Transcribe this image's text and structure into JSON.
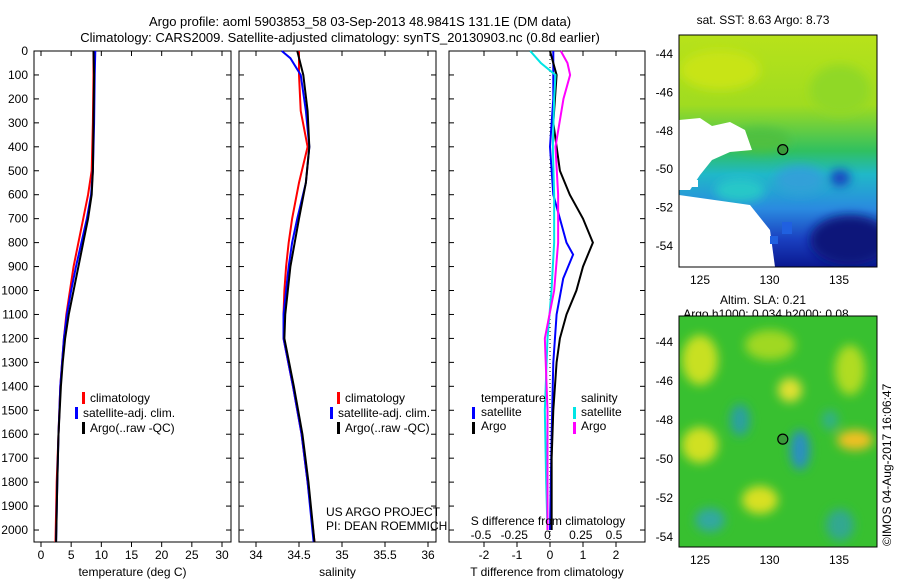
{
  "header": {
    "title_line1": "Argo profile: aoml 5903853_58 03-Sep-2013 48.9841S 131.1E (DM data)",
    "title_line2": "Climatology: CARS2009. Satellite-adjusted climatology: synTS_20130903.nc (0.8d earlier)"
  },
  "credit": {
    "project": "US ARGO PROJECT",
    "pi": "PI: DEAN ROEMMICH",
    "timestamp": "©IMOS 04-Aug-2017 16:06:47"
  },
  "colors": {
    "climatology": "#ff0000",
    "satellite": "#0000ff",
    "argo": "#000000",
    "sal_satellite": "#00e5e5",
    "sal_argo": "#ff00ff"
  },
  "chart_data": [
    {
      "type": "line",
      "xlabel": "temperature (deg C)",
      "xlim": [
        -1,
        31.5
      ],
      "ylim": [
        2050,
        0
      ],
      "xticks": [
        "0",
        "5",
        "10",
        "15",
        "20",
        "25",
        "30"
      ],
      "yticks": [
        "0",
        "100",
        "200",
        "300",
        "400",
        "500",
        "600",
        "700",
        "800",
        "900",
        "1000",
        "1100",
        "1200",
        "1300",
        "1400",
        "1500",
        "1600",
        "1700",
        "1800",
        "1900",
        "2000"
      ],
      "legend": [
        "climatology",
        "satellite-adj. clim.",
        "Argo(..raw -QC)"
      ],
      "series": [
        {
          "name": "climatology",
          "depth": [
            0,
            100,
            300,
            500,
            600,
            700,
            800,
            900,
            1000,
            1100,
            1200,
            1300,
            1400,
            1600,
            1800,
            2050
          ],
          "values": [
            8.7,
            8.7,
            8.6,
            8.4,
            7.8,
            7.0,
            6.2,
            5.4,
            4.8,
            4.2,
            3.8,
            3.5,
            3.2,
            2.9,
            2.6,
            2.4
          ]
        },
        {
          "name": "satellite-adj. clim.",
          "depth": [
            0,
            100,
            300,
            500,
            600,
            700,
            800,
            900,
            1000,
            1100,
            1200,
            1300,
            1400,
            1600,
            1800,
            2050
          ],
          "values": [
            9.0,
            8.9,
            8.8,
            8.6,
            8.3,
            7.6,
            6.7,
            5.8,
            5.0,
            4.3,
            3.8,
            3.5,
            3.2,
            2.9,
            2.7,
            2.5
          ]
        },
        {
          "name": "Argo(..raw -QC)",
          "depth": [
            0,
            100,
            300,
            500,
            600,
            700,
            800,
            900,
            1000,
            1100,
            1200,
            1300,
            1400,
            1600,
            1800,
            2050
          ],
          "values": [
            8.7,
            8.8,
            8.7,
            8.6,
            8.4,
            7.8,
            7.0,
            6.2,
            5.4,
            4.6,
            4.0,
            3.6,
            3.3,
            2.9,
            2.7,
            2.5
          ]
        }
      ]
    },
    {
      "type": "line",
      "xlabel": "salinity",
      "xlim": [
        33.8,
        36.1
      ],
      "ylim": [
        2050,
        0
      ],
      "xticks": [
        "34",
        "34.5",
        "35",
        "35.5",
        "36"
      ],
      "legend": [
        "climatology",
        "satellite-adj. clim.",
        "Argo(..raw -QC)"
      ],
      "series": [
        {
          "name": "climatology",
          "depth": [
            0,
            100,
            250,
            400,
            550,
            700,
            800,
            900,
            1000,
            1100,
            1200,
            1400,
            1600,
            1800,
            2050
          ],
          "values": [
            34.5,
            34.5,
            34.52,
            34.6,
            34.5,
            34.42,
            34.38,
            34.35,
            34.33,
            34.32,
            34.32,
            34.43,
            34.53,
            34.6,
            34.68
          ]
        },
        {
          "name": "satellite-adj. clim.",
          "depth": [
            0,
            30,
            100,
            250,
            400,
            550,
            700,
            800,
            900,
            1000,
            1100,
            1200,
            1400,
            1600,
            1800,
            2050
          ],
          "values": [
            34.3,
            34.4,
            34.52,
            34.58,
            34.62,
            34.58,
            34.48,
            34.42,
            34.38,
            34.35,
            34.32,
            34.32,
            34.43,
            34.53,
            34.6,
            34.67
          ]
        },
        {
          "name": "Argo(..raw -QC)",
          "depth": [
            0,
            100,
            250,
            400,
            550,
            700,
            800,
            900,
            1000,
            1100,
            1200,
            1400,
            1600,
            1800,
            2050
          ],
          "values": [
            34.48,
            34.55,
            34.6,
            34.62,
            34.58,
            34.5,
            34.45,
            34.4,
            34.37,
            34.34,
            34.33,
            34.44,
            34.54,
            34.61,
            34.68
          ]
        }
      ]
    },
    {
      "type": "line",
      "xlabel": "T difference from climatology",
      "x2label": "S difference from climatology",
      "xlim": [
        -2.8,
        2.9
      ],
      "x2lim": [
        -0.6,
        0.5
      ],
      "xticks": [
        "-2",
        "-1",
        "0",
        "1",
        "2"
      ],
      "x2ticks": [
        "-0.5",
        "-0.25",
        "0",
        "0.25",
        "0.5"
      ],
      "legend_titles": [
        "temperature",
        "salinity"
      ],
      "legend": [
        "satellite",
        "Argo",
        "satellite",
        "Argo"
      ],
      "series": [
        {
          "name": "T satellite",
          "axis": "T",
          "depth": [
            0,
            100,
            200,
            400,
            600,
            700,
            800,
            850,
            950,
            1100,
            1300,
            1600,
            2000
          ],
          "values": [
            0.1,
            0.1,
            0.1,
            0.0,
            0.1,
            0.3,
            0.5,
            0.7,
            0.4,
            0.2,
            0.1,
            0.05,
            0.0
          ]
        },
        {
          "name": "T Argo",
          "axis": "T",
          "depth": [
            0,
            100,
            200,
            300,
            400,
            500,
            600,
            700,
            800,
            900,
            1000,
            1100,
            1200,
            1300,
            1500,
            1700,
            2000
          ],
          "values": [
            0.0,
            0.2,
            0.15,
            0.1,
            0.2,
            0.3,
            0.6,
            1.0,
            1.3,
            1.0,
            0.8,
            0.5,
            0.3,
            0.2,
            0.1,
            0.05,
            0.05
          ]
        },
        {
          "name": "S satellite",
          "axis": "S",
          "depth": [
            0,
            50,
            100,
            200,
            400,
            600,
            800,
            1000,
            1200,
            1500,
            1800,
            2000
          ],
          "values": [
            -0.13,
            -0.05,
            0.06,
            0.05,
            0.04,
            0.05,
            0.05,
            0.03,
            0.0,
            -0.02,
            -0.01,
            0.0
          ]
        },
        {
          "name": "S Argo",
          "axis": "S",
          "depth": [
            0,
            50,
            100,
            200,
            400,
            600,
            800,
            1000,
            1200,
            1500,
            1800,
            2000
          ],
          "values": [
            0.1,
            0.15,
            0.17,
            0.12,
            0.06,
            0.08,
            0.08,
            0.05,
            -0.02,
            0.0,
            0.0,
            0.0
          ]
        }
      ]
    },
    {
      "type": "heatmap",
      "title": "sat. SST: 8.63 Argo: 8.73",
      "xticks": [
        "125",
        "130",
        "135"
      ],
      "yticks": [
        "-44",
        "-46",
        "-48",
        "-50",
        "-52",
        "-54"
      ],
      "marker": {
        "lon": 131.1,
        "lat": -48.98
      }
    },
    {
      "type": "heatmap",
      "title_line1": "Altim. SLA: 0.21",
      "title_line2": "Argo h1000: 0.034 h2000: 0.08",
      "xticks": [
        "125",
        "130",
        "135"
      ],
      "yticks": [
        "-44",
        "-46",
        "-48",
        "-50",
        "-52",
        "-54"
      ],
      "marker": {
        "lon": 131.1,
        "lat": -48.98
      }
    }
  ]
}
